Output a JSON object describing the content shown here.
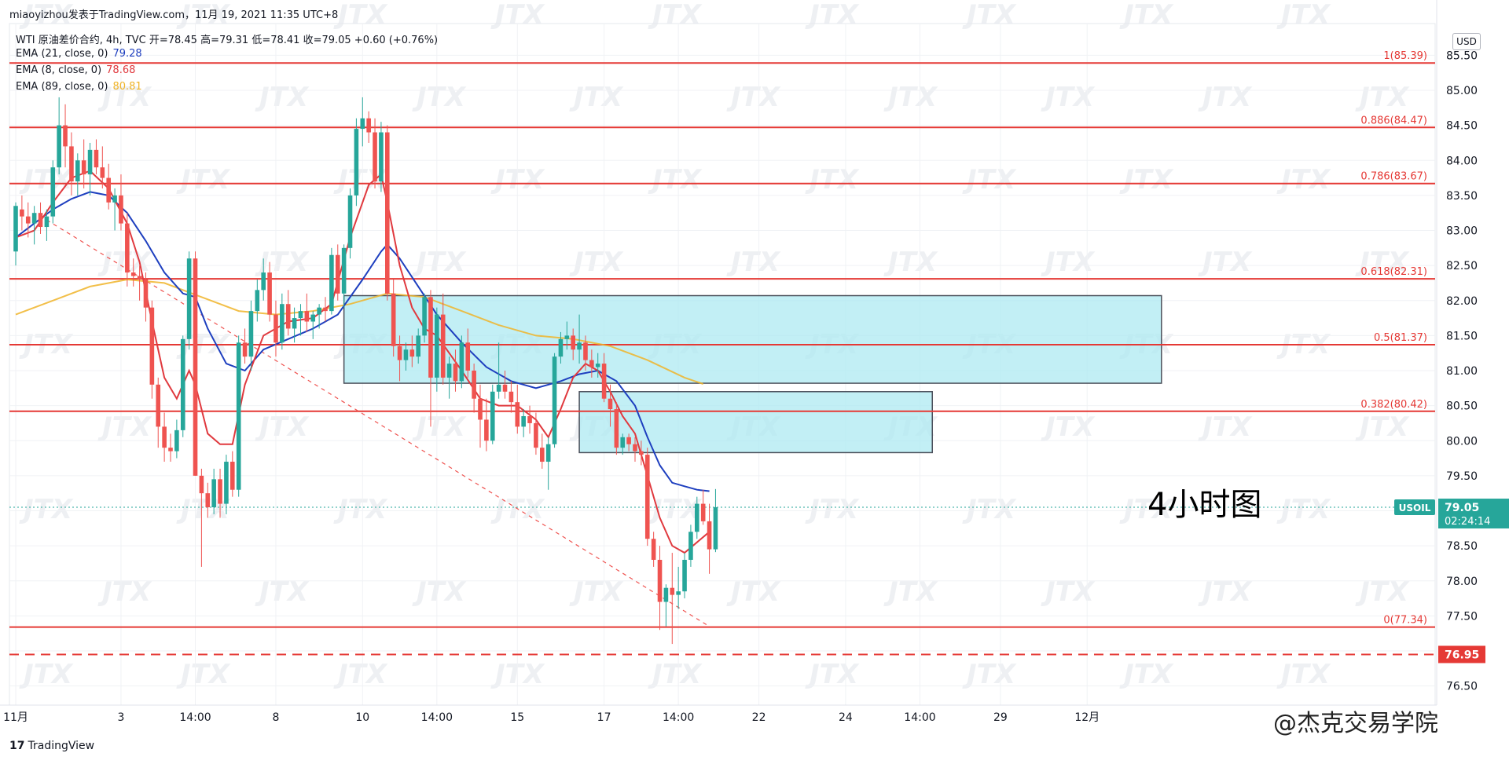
{
  "header": {
    "note": "miaoyizhou发表于TradingView.com，11月 19, 2021 11:35 UTC+8",
    "symbol_line": "WTI 原油差价合约, 4h, TVC  开=78.45 高=79.31 低=78.41 收=79.05 +0.60 (+0.76%)"
  },
  "legend": [
    {
      "label": "EMA (21, close, 0)",
      "value": "79.28",
      "color": "#1e3fbf"
    },
    {
      "label": "EMA (8, close, 0)",
      "value": "78.68",
      "color": "#e0393e"
    },
    {
      "label": "EMA (89, close, 0)",
      "value": "80.81",
      "color": "#f0b429"
    }
  ],
  "currency": "USD",
  "footer_brand": "TradingView",
  "annotation": "4小时图",
  "watermark_text": "@杰克交易学院",
  "chart_data": {
    "type": "candlestick",
    "ylim": [
      76.2,
      85.8
    ],
    "y_ticks": [
      "85.50",
      "85.00",
      "84.50",
      "84.00",
      "83.50",
      "83.00",
      "82.50",
      "82.00",
      "81.50",
      "81.00",
      "80.50",
      "80.00",
      "79.50",
      "79.00",
      "78.50",
      "78.00",
      "77.50",
      "77.00",
      "76.50"
    ],
    "x_ticks": [
      {
        "label": "11月",
        "i": 0
      },
      {
        "label": "3",
        "i": 17
      },
      {
        "label": "14:00",
        "i": 29
      },
      {
        "label": "8",
        "i": 42
      },
      {
        "label": "10",
        "i": 56
      },
      {
        "label": "14:00",
        "i": 68
      },
      {
        "label": "15",
        "i": 81
      },
      {
        "label": "17",
        "i": 95
      },
      {
        "label": "14:00",
        "i": 107
      },
      {
        "label": "22",
        "i": 120
      },
      {
        "label": "24",
        "i": 134
      },
      {
        "label": "14:00",
        "i": 146
      },
      {
        "label": "29",
        "i": 159
      },
      {
        "label": "12月",
        "i": 173
      }
    ],
    "fib_levels": [
      {
        "label": "1(85.39)",
        "value": 85.39
      },
      {
        "label": "0.886(84.47)",
        "value": 84.47
      },
      {
        "label": "0.786(83.67)",
        "value": 83.67
      },
      {
        "label": "0.618(82.31)",
        "value": 82.31
      },
      {
        "label": "0.5(81.37)",
        "value": 81.37
      },
      {
        "label": "0.382(80.42)",
        "value": 80.42
      },
      {
        "label": "0(77.34)",
        "value": 77.34
      }
    ],
    "dashed_level": {
      "value": 76.95,
      "label": "76.95"
    },
    "last_price": {
      "symbol": "USOIL",
      "value": 79.05,
      "label": "79.05",
      "countdown": "02:24:14"
    },
    "zones": [
      {
        "i0": 53,
        "i1": 185,
        "top": 82.07,
        "bottom": 80.82
      },
      {
        "i0": 91,
        "i1": 148,
        "top": 80.7,
        "bottom": 79.83
      }
    ],
    "trendline": {
      "i0": 5,
      "v0": 83.15,
      "i1": 112,
      "v1": 77.35
    },
    "candles": [
      [
        82.7,
        83.4,
        82.5,
        83.35
      ],
      [
        83.3,
        83.5,
        83.0,
        83.2
      ],
      [
        83.2,
        83.4,
        82.9,
        83.1
      ],
      [
        83.1,
        83.35,
        82.8,
        83.25
      ],
      [
        83.25,
        83.4,
        82.95,
        83.05
      ],
      [
        83.05,
        83.3,
        82.85,
        83.2
      ],
      [
        83.2,
        84.0,
        83.1,
        83.9
      ],
      [
        83.9,
        84.9,
        83.8,
        84.5
      ],
      [
        84.5,
        84.8,
        83.9,
        84.2
      ],
      [
        84.2,
        84.4,
        83.5,
        83.7
      ],
      [
        83.7,
        84.1,
        83.5,
        84.0
      ],
      [
        84.0,
        84.3,
        83.6,
        83.8
      ],
      [
        83.8,
        84.25,
        83.5,
        84.15
      ],
      [
        84.15,
        84.3,
        83.8,
        83.9
      ],
      [
        83.9,
        84.2,
        83.6,
        83.75
      ],
      [
        83.75,
        83.95,
        83.3,
        83.4
      ],
      [
        83.4,
        83.6,
        83.0,
        83.5
      ],
      [
        83.5,
        83.8,
        83.0,
        83.1
      ],
      [
        83.1,
        83.25,
        82.2,
        82.4
      ],
      [
        82.4,
        82.6,
        82.2,
        82.35
      ],
      [
        82.35,
        82.5,
        82.0,
        82.3
      ],
      [
        82.3,
        82.4,
        81.7,
        81.9
      ],
      [
        81.9,
        82.0,
        80.6,
        80.8
      ],
      [
        80.8,
        80.9,
        79.9,
        80.2
      ],
      [
        80.2,
        80.4,
        79.7,
        79.9
      ],
      [
        79.9,
        80.1,
        79.7,
        79.85
      ],
      [
        79.85,
        80.3,
        79.75,
        80.15
      ],
      [
        80.15,
        81.5,
        80.05,
        81.45
      ],
      [
        81.45,
        82.7,
        81.3,
        82.6
      ],
      [
        82.6,
        82.7,
        79.5,
        79.5
      ],
      [
        79.5,
        79.6,
        78.2,
        79.25
      ],
      [
        79.25,
        79.4,
        78.9,
        79.05
      ],
      [
        79.05,
        79.6,
        78.95,
        79.45
      ],
      [
        79.45,
        79.6,
        78.9,
        79.1
      ],
      [
        79.1,
        79.8,
        78.95,
        79.7
      ],
      [
        79.7,
        79.85,
        79.2,
        79.3
      ],
      [
        79.3,
        81.5,
        79.2,
        81.4
      ],
      [
        81.4,
        81.6,
        81.1,
        81.2
      ],
      [
        81.2,
        82.0,
        81.0,
        81.85
      ],
      [
        81.85,
        82.3,
        81.7,
        82.15
      ],
      [
        82.15,
        82.6,
        82.0,
        82.4
      ],
      [
        82.4,
        82.55,
        81.7,
        81.8
      ],
      [
        81.8,
        82.0,
        81.2,
        81.4
      ],
      [
        81.4,
        82.1,
        81.3,
        81.95
      ],
      [
        81.95,
        82.15,
        81.5,
        81.6
      ],
      [
        81.6,
        81.9,
        81.4,
        81.75
      ],
      [
        81.75,
        81.95,
        81.5,
        81.85
      ],
      [
        81.85,
        82.1,
        81.55,
        81.7
      ],
      [
        81.7,
        81.85,
        81.45,
        81.8
      ],
      [
        81.8,
        81.95,
        81.6,
        81.9
      ],
      [
        81.9,
        82.05,
        81.7,
        81.85
      ],
      [
        81.85,
        82.75,
        81.8,
        82.65
      ],
      [
        82.65,
        82.8,
        82.0,
        82.1
      ],
      [
        82.1,
        82.8,
        81.9,
        82.75
      ],
      [
        82.75,
        83.6,
        82.6,
        83.5
      ],
      [
        83.5,
        84.6,
        83.35,
        84.45
      ],
      [
        84.45,
        84.9,
        84.2,
        84.6
      ],
      [
        84.6,
        84.7,
        84.25,
        84.4
      ],
      [
        84.4,
        84.6,
        83.6,
        83.7
      ],
      [
        83.7,
        84.55,
        83.55,
        84.4
      ],
      [
        84.4,
        84.5,
        82.0,
        82.1
      ],
      [
        82.1,
        82.3,
        81.2,
        81.35
      ],
      [
        81.35,
        81.5,
        80.85,
        81.15
      ],
      [
        81.15,
        81.4,
        81.0,
        81.3
      ],
      [
        81.3,
        81.5,
        81.05,
        81.2
      ],
      [
        81.2,
        81.6,
        81.1,
        81.5
      ],
      [
        81.5,
        82.1,
        81.4,
        82.05
      ],
      [
        82.05,
        82.15,
        80.2,
        80.9
      ],
      [
        80.9,
        81.9,
        80.7,
        81.8
      ],
      [
        81.8,
        82.1,
        80.8,
        80.9
      ],
      [
        80.9,
        81.2,
        80.6,
        81.1
      ],
      [
        81.1,
        81.3,
        80.7,
        80.85
      ],
      [
        80.85,
        81.5,
        80.75,
        81.4
      ],
      [
        81.4,
        81.6,
        80.9,
        81.0
      ],
      [
        81.0,
        81.1,
        80.4,
        80.6
      ],
      [
        80.6,
        80.8,
        79.9,
        80.3
      ],
      [
        80.3,
        80.6,
        79.85,
        80.0
      ],
      [
        80.0,
        80.8,
        79.95,
        80.7
      ],
      [
        80.7,
        81.4,
        80.6,
        80.8
      ],
      [
        80.8,
        81.0,
        80.6,
        80.7
      ],
      [
        80.7,
        80.85,
        80.4,
        80.55
      ],
      [
        80.55,
        80.8,
        80.1,
        80.2
      ],
      [
        80.2,
        80.45,
        80.05,
        80.35
      ],
      [
        80.35,
        80.5,
        80.1,
        80.25
      ],
      [
        80.25,
        80.4,
        79.8,
        79.9
      ],
      [
        79.9,
        80.1,
        79.6,
        79.7
      ],
      [
        79.7,
        80.05,
        79.3,
        79.95
      ],
      [
        79.95,
        81.25,
        79.9,
        81.2
      ],
      [
        81.2,
        81.55,
        81.1,
        81.45
      ],
      [
        81.45,
        81.7,
        81.3,
        81.5
      ],
      [
        81.5,
        81.6,
        81.15,
        81.3
      ],
      [
        81.3,
        81.8,
        81.1,
        81.4
      ],
      [
        81.4,
        81.5,
        81.0,
        81.15
      ],
      [
        81.15,
        81.3,
        80.9,
        81.05
      ],
      [
        81.05,
        81.25,
        80.9,
        81.1
      ],
      [
        81.1,
        81.25,
        80.55,
        80.6
      ],
      [
        80.6,
        80.8,
        80.2,
        80.45
      ],
      [
        80.45,
        80.55,
        79.8,
        79.9
      ],
      [
        79.9,
        80.1,
        79.8,
        80.05
      ],
      [
        80.05,
        80.1,
        79.85,
        79.95
      ],
      [
        79.95,
        80.05,
        79.7,
        79.85
      ],
      [
        79.85,
        80.0,
        79.65,
        79.8
      ],
      [
        79.8,
        79.9,
        78.5,
        78.6
      ],
      [
        78.6,
        78.7,
        78.2,
        78.3
      ],
      [
        78.3,
        78.5,
        77.3,
        77.7
      ],
      [
        77.7,
        77.95,
        77.35,
        77.9
      ],
      [
        77.9,
        78.4,
        77.1,
        77.8
      ],
      [
        77.8,
        78.2,
        77.6,
        77.85
      ],
      [
        77.85,
        78.4,
        77.75,
        78.3
      ],
      [
        78.3,
        78.8,
        78.2,
        78.7
      ],
      [
        78.7,
        79.2,
        78.6,
        79.1
      ],
      [
        79.1,
        79.3,
        78.8,
        78.85
      ],
      [
        78.85,
        79.1,
        78.1,
        78.45
      ],
      [
        78.45,
        79.31,
        78.41,
        79.05
      ]
    ],
    "ema8": [
      [
        0,
        82.9
      ],
      [
        3,
        83.0
      ],
      [
        6,
        83.4
      ],
      [
        9,
        83.75
      ],
      [
        12,
        83.85
      ],
      [
        15,
        83.6
      ],
      [
        18,
        83.1
      ],
      [
        20,
        82.55
      ],
      [
        22,
        81.7
      ],
      [
        24,
        80.9
      ],
      [
        26,
        80.6
      ],
      [
        28,
        81.0
      ],
      [
        29,
        80.8
      ],
      [
        31,
        80.1
      ],
      [
        33,
        79.95
      ],
      [
        35,
        79.95
      ],
      [
        37,
        80.8
      ],
      [
        40,
        81.5
      ],
      [
        44,
        81.7
      ],
      [
        48,
        81.75
      ],
      [
        51,
        81.95
      ],
      [
        54,
        82.9
      ],
      [
        57,
        83.65
      ],
      [
        59,
        83.8
      ],
      [
        60,
        83.4
      ],
      [
        62,
        82.5
      ],
      [
        64,
        81.9
      ],
      [
        66,
        81.6
      ],
      [
        68,
        81.5
      ],
      [
        70,
        81.25
      ],
      [
        72,
        81.0
      ],
      [
        75,
        80.6
      ],
      [
        78,
        80.5
      ],
      [
        81,
        80.5
      ],
      [
        84,
        80.3
      ],
      [
        86,
        80.05
      ],
      [
        88,
        80.45
      ],
      [
        90,
        80.9
      ],
      [
        92,
        81.1
      ],
      [
        94,
        81.0
      ],
      [
        96,
        80.7
      ],
      [
        98,
        80.35
      ],
      [
        100,
        80.1
      ],
      [
        102,
        79.5
      ],
      [
        104,
        78.9
      ],
      [
        106,
        78.5
      ],
      [
        108,
        78.4
      ],
      [
        110,
        78.55
      ],
      [
        112,
        78.7
      ]
    ],
    "ema21": [
      [
        0,
        82.9
      ],
      [
        3,
        83.1
      ],
      [
        6,
        83.3
      ],
      [
        9,
        83.45
      ],
      [
        12,
        83.55
      ],
      [
        15,
        83.5
      ],
      [
        18,
        83.25
      ],
      [
        21,
        82.85
      ],
      [
        24,
        82.4
      ],
      [
        27,
        82.1
      ],
      [
        29,
        82.05
      ],
      [
        31,
        81.6
      ],
      [
        34,
        81.1
      ],
      [
        37,
        81.0
      ],
      [
        40,
        81.3
      ],
      [
        44,
        81.45
      ],
      [
        48,
        81.6
      ],
      [
        52,
        81.8
      ],
      [
        56,
        82.3
      ],
      [
        59,
        82.7
      ],
      [
        60,
        82.8
      ],
      [
        62,
        82.6
      ],
      [
        65,
        82.2
      ],
      [
        68,
        81.8
      ],
      [
        72,
        81.4
      ],
      [
        76,
        81.05
      ],
      [
        80,
        80.85
      ],
      [
        84,
        80.75
      ],
      [
        88,
        80.85
      ],
      [
        91,
        80.95
      ],
      [
        94,
        81.0
      ],
      [
        97,
        80.85
      ],
      [
        100,
        80.5
      ],
      [
        102,
        80.05
      ],
      [
        104,
        79.65
      ],
      [
        106,
        79.4
      ],
      [
        108,
        79.35
      ],
      [
        110,
        79.3
      ],
      [
        112,
        79.28
      ]
    ],
    "ema89": [
      [
        0,
        81.8
      ],
      [
        6,
        82.0
      ],
      [
        12,
        82.2
      ],
      [
        18,
        82.3
      ],
      [
        24,
        82.25
      ],
      [
        30,
        82.05
      ],
      [
        36,
        81.85
      ],
      [
        42,
        81.8
      ],
      [
        48,
        81.85
      ],
      [
        54,
        81.95
      ],
      [
        60,
        82.1
      ],
      [
        66,
        82.05
      ],
      [
        72,
        81.85
      ],
      [
        78,
        81.65
      ],
      [
        84,
        81.5
      ],
      [
        90,
        81.45
      ],
      [
        96,
        81.35
      ],
      [
        102,
        81.15
      ],
      [
        108,
        80.9
      ],
      [
        111,
        80.81
      ]
    ]
  }
}
